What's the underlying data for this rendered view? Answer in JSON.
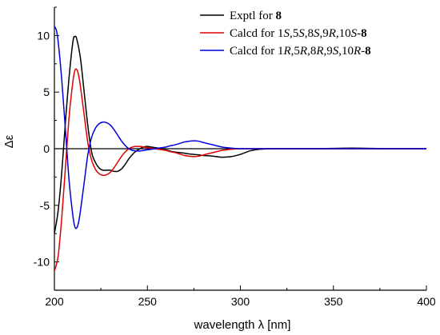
{
  "chart_data": {
    "type": "line",
    "xlabel": "wavelength λ [nm]",
    "ylabel": "Δε",
    "xlim": [
      200,
      400
    ],
    "ylim": [
      -12.5,
      12.5
    ],
    "x_ticks": [
      200,
      250,
      300,
      350,
      400
    ],
    "y_ticks": [
      -10,
      -5,
      0,
      5,
      10
    ],
    "zero_line": true,
    "grid": false,
    "legend_position": "top-right",
    "series": [
      {
        "name": "Exptl for 8",
        "legend_parts": [
          [
            "Exptl for ",
            "n"
          ],
          [
            "8",
            "b"
          ]
        ],
        "color": "#000000",
        "x": [
          200,
          202,
          204,
          206,
          208,
          210,
          211,
          212,
          214,
          216,
          218,
          220,
          222,
          224,
          226,
          228,
          230,
          232,
          234,
          236,
          238,
          240,
          242,
          244,
          246,
          248,
          250,
          252,
          254,
          256,
          258,
          260,
          262,
          265,
          268,
          270,
          272,
          275,
          278,
          280,
          285,
          290,
          295,
          300,
          305,
          310,
          320,
          340,
          360,
          380,
          400
        ],
        "y": [
          -7.5,
          -5.5,
          -2.0,
          2.5,
          6.5,
          9.5,
          9.9,
          9.7,
          8.0,
          5.0,
          2.0,
          -0.3,
          -1.2,
          -1.7,
          -1.9,
          -1.9,
          -1.9,
          -2.0,
          -2.0,
          -1.8,
          -1.4,
          -0.9,
          -0.5,
          -0.2,
          0.0,
          0.15,
          0.2,
          0.15,
          0.1,
          0.05,
          0.0,
          -0.1,
          -0.2,
          -0.3,
          -0.35,
          -0.4,
          -0.45,
          -0.5,
          -0.55,
          -0.6,
          -0.65,
          -0.75,
          -0.7,
          -0.5,
          -0.2,
          -0.05,
          0.0,
          0.0,
          0.05,
          0.0,
          0.0
        ]
      },
      {
        "name": "Calcd for 1S,5S,8S,9R,10S-8",
        "legend_parts": [
          [
            "Calcd for 1",
            "n"
          ],
          [
            "S",
            "i"
          ],
          [
            ",5",
            "n"
          ],
          [
            "S",
            "i"
          ],
          [
            ",8",
            "n"
          ],
          [
            "S",
            "i"
          ],
          [
            ",9",
            "n"
          ],
          [
            "R",
            "i"
          ],
          [
            ",10",
            "n"
          ],
          [
            "S",
            "i"
          ],
          [
            "-",
            "n"
          ],
          [
            "8",
            "b"
          ]
        ],
        "color": "#e00000",
        "x": [
          200,
          202,
          204,
          206,
          208,
          210,
          211,
          212,
          213,
          214,
          216,
          218,
          220,
          222,
          224,
          226,
          228,
          230,
          232,
          234,
          236,
          238,
          240,
          242,
          244,
          246,
          248,
          250,
          252,
          254,
          256,
          258,
          260,
          262,
          265,
          268,
          270,
          272,
          275,
          278,
          280,
          285,
          290,
          295,
          300,
          305,
          320,
          340,
          360,
          380,
          400
        ],
        "y": [
          -10.8,
          -9.5,
          -6.0,
          -1.5,
          3.0,
          6.0,
          6.9,
          7.0,
          6.5,
          5.5,
          3.0,
          0.5,
          -1.0,
          -1.8,
          -2.2,
          -2.35,
          -2.3,
          -2.1,
          -1.7,
          -1.2,
          -0.7,
          -0.3,
          0.0,
          0.15,
          0.2,
          0.2,
          0.15,
          0.1,
          0.05,
          0.0,
          -0.05,
          -0.1,
          -0.15,
          -0.25,
          -0.35,
          -0.5,
          -0.6,
          -0.65,
          -0.7,
          -0.65,
          -0.55,
          -0.35,
          -0.15,
          -0.05,
          0.0,
          0.0,
          0.0,
          0.0,
          0.0,
          0.0,
          0.0
        ]
      },
      {
        "name": "Calcd for 1R,5R,8R,9S,10R-8",
        "legend_parts": [
          [
            "Calcd for 1",
            "n"
          ],
          [
            "R",
            "i"
          ],
          [
            ",5",
            "n"
          ],
          [
            "R",
            "i"
          ],
          [
            ",8",
            "n"
          ],
          [
            "R",
            "i"
          ],
          [
            ",9",
            "n"
          ],
          [
            "S",
            "i"
          ],
          [
            ",10",
            "n"
          ],
          [
            "R",
            "i"
          ],
          [
            "-",
            "n"
          ],
          [
            "8",
            "b"
          ]
        ],
        "color": "#0000dd",
        "x": [
          200,
          201,
          202,
          204,
          206,
          208,
          210,
          211,
          212,
          213,
          214,
          216,
          218,
          220,
          222,
          224,
          226,
          228,
          230,
          232,
          234,
          236,
          238,
          240,
          242,
          244,
          246,
          248,
          250,
          252,
          254,
          256,
          258,
          260,
          262,
          265,
          268,
          270,
          272,
          275,
          278,
          280,
          285,
          290,
          295,
          300,
          305,
          320,
          340,
          360,
          380,
          400
        ],
        "y": [
          10.8,
          10.5,
          9.5,
          6.0,
          1.5,
          -3.0,
          -6.0,
          -6.9,
          -7.0,
          -6.5,
          -5.5,
          -3.0,
          -0.5,
          1.0,
          1.8,
          2.2,
          2.35,
          2.3,
          2.1,
          1.7,
          1.2,
          0.7,
          0.3,
          0.0,
          -0.15,
          -0.2,
          -0.2,
          -0.15,
          -0.1,
          -0.05,
          0.0,
          0.05,
          0.1,
          0.15,
          0.25,
          0.35,
          0.5,
          0.6,
          0.65,
          0.7,
          0.65,
          0.55,
          0.35,
          0.15,
          0.05,
          0.0,
          0.0,
          0.0,
          0.0,
          0.0,
          0.0,
          0.0
        ]
      }
    ]
  }
}
